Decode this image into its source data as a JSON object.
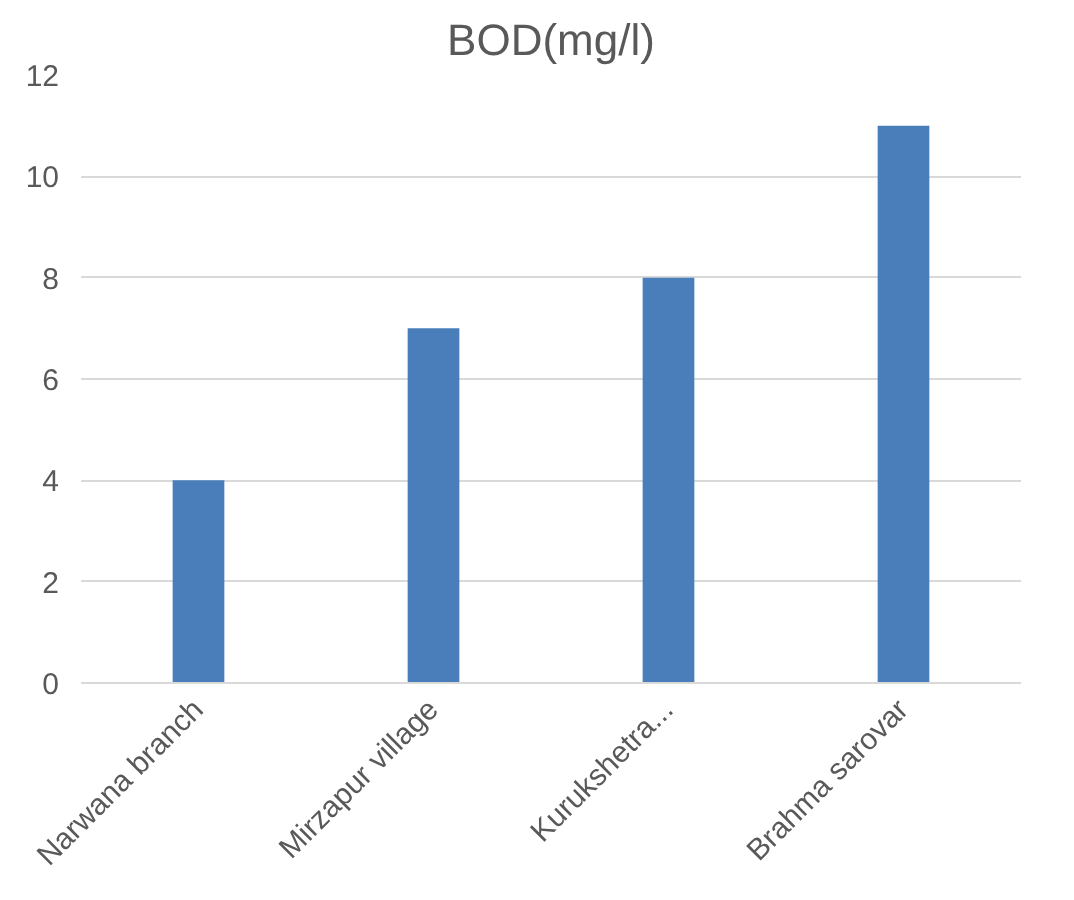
{
  "chart_data": {
    "type": "bar",
    "title": "BOD(mg/l)",
    "categories": [
      "Narwana branch",
      "Mirzapur village",
      "Kurukshetra...",
      "Brahma sarovar"
    ],
    "values": [
      4,
      7,
      8,
      11
    ],
    "color": "#4a7ebb",
    "ylim": [
      0,
      12
    ],
    "yticks": [
      0,
      2,
      4,
      6,
      8,
      10,
      12
    ],
    "grid": "y"
  }
}
